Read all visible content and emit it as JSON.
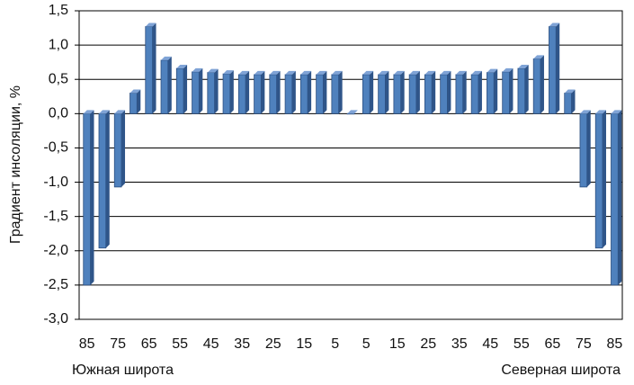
{
  "chart_data": {
    "type": "bar",
    "ylabel": "Градиент инсоляции, %",
    "annotations": [
      "Южная широта",
      "Северная широта"
    ],
    "categories": [
      "85",
      null,
      "75",
      null,
      "65",
      null,
      "55",
      null,
      "45",
      null,
      "35",
      null,
      "25",
      null,
      "15",
      null,
      "5",
      null,
      "5",
      null,
      "15",
      null,
      "25",
      null,
      "35",
      null,
      "45",
      null,
      "55",
      null,
      "65",
      null,
      "75",
      null,
      "85"
    ],
    "values": [
      -2.5,
      -1.96,
      -1.07,
      0.3,
      1.27,
      0.78,
      0.66,
      0.61,
      0.6,
      0.58,
      0.57,
      0.57,
      0.57,
      0.57,
      0.57,
      0.57,
      0.57,
      0,
      0.57,
      0.57,
      0.57,
      0.57,
      0.57,
      0.57,
      0.57,
      0.57,
      0.6,
      0.61,
      0.66,
      0.8,
      1.27,
      0.3,
      -1.07,
      -1.96,
      -2.5
    ],
    "color": "#4f81bd",
    "ylim": [
      -3,
      1.5
    ],
    "yticks": [
      {
        "value": 1.5,
        "label": "1,5"
      },
      {
        "value": 1,
        "label": "1,0"
      },
      {
        "value": 0.5,
        "label": "0,5"
      },
      {
        "value": 0,
        "label": "0,0"
      },
      {
        "value": -0.5,
        "label": "-0,5"
      },
      {
        "value": -1,
        "label": "-1,0"
      },
      {
        "value": -1.5,
        "label": "-1,5"
      },
      {
        "value": -2,
        "label": "-2,0"
      },
      {
        "value": -2.5,
        "label": "-2,5"
      },
      {
        "value": -3,
        "label": "-3,0"
      }
    ],
    "grid": true
  }
}
